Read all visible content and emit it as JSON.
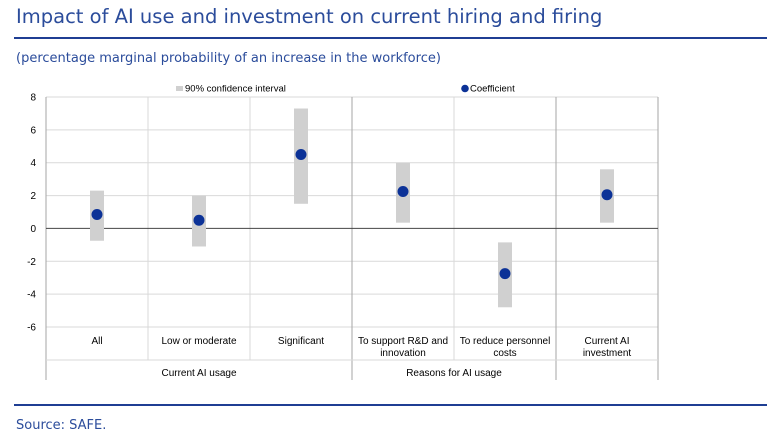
{
  "header": {
    "title": "Impact of AI use and investment on current hiring and firing",
    "subtitle": "(percentage marginal probability of an increase in the workforce)"
  },
  "footer": {
    "source": "Source: SAFE."
  },
  "colors": {
    "accent": "#1f3e93",
    "interval": "#d0d0d0",
    "marker": "#0c3297"
  },
  "chart_data": {
    "type": "scatter",
    "ylim": [
      -6,
      8
    ],
    "yticks": [
      -6,
      -4,
      -2,
      0,
      2,
      4,
      6,
      8
    ],
    "grid": true,
    "legend": {
      "placement": "top",
      "interval_label": "90% confidence interval",
      "coefficient_label": "Coefficient"
    },
    "categories": [
      [
        "All"
      ],
      [
        "Low or moderate"
      ],
      [
        "Significant"
      ],
      [
        "To support R&D and",
        "innovation"
      ],
      [
        "To reduce personnel",
        "costs"
      ],
      [
        "Current AI",
        "investment"
      ]
    ],
    "groups": [
      {
        "label": "Current AI usage",
        "span": [
          0,
          2
        ]
      },
      {
        "label": "Reasons for AI usage",
        "span": [
          3,
          4
        ]
      }
    ],
    "series": [
      {
        "name": "Coefficient",
        "values": [
          0.85,
          0.5,
          4.5,
          2.25,
          -2.75,
          2.05
        ]
      },
      {
        "name": "90% confidence interval",
        "low": [
          -0.75,
          -1.1,
          1.5,
          0.35,
          -4.8,
          0.35
        ],
        "high": [
          2.3,
          2.0,
          7.3,
          4.0,
          -0.85,
          3.6
        ]
      }
    ]
  }
}
